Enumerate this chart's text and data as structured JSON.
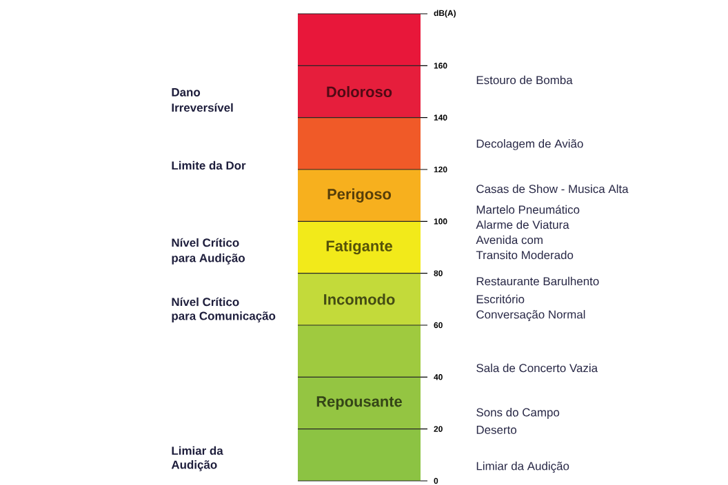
{
  "chart_data": {
    "type": "bar",
    "stacked": true,
    "grid": "y",
    "categories": [
      null
    ],
    "ylim": [
      0,
      180
    ],
    "yticks": [
      0,
      20,
      40,
      60,
      80,
      100,
      120,
      140,
      160,
      {
        "value": 180,
        "label": "dB(A)"
      }
    ],
    "series": [
      {
        "color": "#8cc343",
        "values": [
          20
        ]
      },
      {
        "name": "Repousante",
        "color": "#94c542",
        "values": [
          20
        ]
      },
      {
        "color": "#9fca3f",
        "values": [
          20
        ]
      },
      {
        "name": "Incomodo",
        "color": "#c3da3a",
        "values": [
          20
        ]
      },
      {
        "name": "Fatigante",
        "color": "#f2ea1a",
        "values": [
          20
        ]
      },
      {
        "name": "Perigoso",
        "color": "#f7b01e",
        "values": [
          20
        ]
      },
      {
        "color": "#f05a28",
        "values": [
          20
        ]
      },
      {
        "name": "Doloroso",
        "color": "#e61e3c",
        "values": [
          20
        ]
      },
      {
        "color": "#e8173a",
        "values": [
          20
        ]
      }
    ],
    "annotations": [
      "Dano",
      "Irreversível",
      "Limite da Dor",
      "Nível Crítico",
      "para Audição",
      "Nível Crítico",
      "para Comunicação",
      "Limiar da",
      "Audição",
      "Estouro de Bomba",
      "Decolagem de Avião",
      "Casas de Show - Musica Alta",
      "Martelo Pneumático",
      "Alarme de Viatura",
      "Avenida com",
      "Transito Moderado",
      "Restaurante Barulhento",
      "Escritório",
      "Conversação Normal",
      "Sala de Concerto Vazia",
      "Sons do Campo",
      "Deserto",
      "Limiar da Audição"
    ]
  }
}
